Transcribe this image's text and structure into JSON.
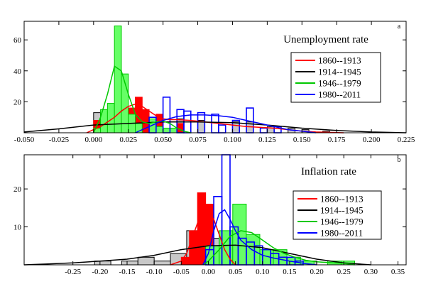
{
  "chart_data": [
    {
      "type": "histogram",
      "title": "Unemployment rate",
      "panel_tag": "a",
      "xlabel": "",
      "ylabel": "",
      "xlim": [
        -0.05,
        0.225
      ],
      "ylim": [
        0,
        72
      ],
      "x_ticks": [
        -0.05,
        -0.025,
        0.0,
        0.025,
        0.05,
        0.075,
        0.1,
        0.125,
        0.15,
        0.175,
        0.2,
        0.225
      ],
      "x_tick_labels": [
        "-0.050",
        "-0.025",
        "0.000",
        "0.025",
        "0.050",
        "0.075",
        "0.100",
        "0.125",
        "0.150",
        "0.175",
        "0.200",
        "0.225"
      ],
      "y_ticks": [
        20,
        40,
        60
      ],
      "y_tick_labels": [
        "20",
        "40",
        "60"
      ],
      "legend_position": "right",
      "grid": false,
      "series": [
        {
          "name": "1860--1913",
          "color": "#ff0000",
          "fill": "#ff0000",
          "hist": [
            [
              0.0,
              0.005,
              8
            ],
            [
              0.025,
              0.03,
              16
            ],
            [
              0.03,
              0.035,
              23
            ],
            [
              0.035,
              0.04,
              15
            ],
            [
              0.045,
              0.05,
              12
            ],
            [
              0.06,
              0.065,
              6
            ]
          ],
          "curve": [
            [
              -0.005,
              0
            ],
            [
              0.0,
              2
            ],
            [
              0.005,
              4
            ],
            [
              0.01,
              7
            ],
            [
              0.015,
              10
            ],
            [
              0.02,
              14
            ],
            [
              0.025,
              17
            ],
            [
              0.03,
              18.5
            ],
            [
              0.035,
              17
            ],
            [
              0.04,
              14
            ],
            [
              0.045,
              11
            ],
            [
              0.05,
              9
            ],
            [
              0.055,
              8.5
            ],
            [
              0.06,
              8.5
            ],
            [
              0.07,
              8
            ],
            [
              0.08,
              7
            ],
            [
              0.09,
              6
            ],
            [
              0.1,
              5
            ],
            [
              0.11,
              4
            ],
            [
              0.12,
              3.5
            ],
            [
              0.13,
              3
            ],
            [
              0.14,
              2
            ],
            [
              0.15,
              1
            ],
            [
              0.16,
              0.5
            ],
            [
              0.18,
              0
            ]
          ]
        },
        {
          "name": "1914--1945",
          "color": "#000000",
          "fill": "#c8c8c8",
          "hist": [
            [
              0.0,
              0.005,
              13
            ],
            [
              0.025,
              0.03,
              7
            ],
            [
              0.04,
              0.045,
              7
            ],
            [
              0.06,
              0.065,
              9
            ],
            [
              0.075,
              0.08,
              8
            ],
            [
              0.1,
              0.105,
              7
            ],
            [
              0.11,
              0.115,
              7
            ],
            [
              0.125,
              0.13,
              4
            ],
            [
              0.14,
              0.145,
              3
            ],
            [
              0.15,
              0.155,
              2
            ],
            [
              0.165,
              0.17,
              1
            ]
          ],
          "curve": [
            [
              -0.05,
              0.5
            ],
            [
              -0.025,
              2.5
            ],
            [
              0.0,
              5
            ],
            [
              0.025,
              6
            ],
            [
              0.05,
              7
            ],
            [
              0.075,
              7
            ],
            [
              0.1,
              6.5
            ],
            [
              0.125,
              5
            ],
            [
              0.15,
              3
            ],
            [
              0.175,
              1.5
            ],
            [
              0.2,
              0.5
            ],
            [
              0.225,
              0
            ]
          ]
        },
        {
          "name": "1946--1979",
          "color": "#00c800",
          "fill": "#66ff66",
          "hist": [
            [
              0.0,
              0.005,
              3
            ],
            [
              0.005,
              0.01,
              15
            ],
            [
              0.01,
              0.015,
              19
            ],
            [
              0.015,
              0.02,
              69
            ],
            [
              0.02,
              0.025,
              38
            ],
            [
              0.025,
              0.03,
              12
            ],
            [
              0.03,
              0.035,
              6
            ],
            [
              0.04,
              0.045,
              9
            ],
            [
              0.045,
              0.05,
              4
            ],
            [
              0.05,
              0.055,
              3
            ],
            [
              0.055,
              0.06,
              3
            ]
          ],
          "curve": [
            [
              0.0,
              0
            ],
            [
              0.005,
              10
            ],
            [
              0.01,
              25
            ],
            [
              0.015,
              43
            ],
            [
              0.02,
              40
            ],
            [
              0.025,
              25
            ],
            [
              0.03,
              12
            ],
            [
              0.035,
              7
            ],
            [
              0.04,
              6
            ],
            [
              0.045,
              7
            ],
            [
              0.05,
              7.5
            ],
            [
              0.055,
              6
            ],
            [
              0.06,
              3
            ],
            [
              0.065,
              1
            ],
            [
              0.07,
              0
            ]
          ]
        },
        {
          "name": "1980--2011",
          "color": "#0000ff",
          "fill": "none",
          "hist": [
            [
              0.04,
              0.045,
              10
            ],
            [
              0.05,
              0.055,
              23
            ],
            [
              0.06,
              0.065,
              15
            ],
            [
              0.065,
              0.07,
              14
            ],
            [
              0.075,
              0.08,
              13
            ],
            [
              0.085,
              0.09,
              12
            ],
            [
              0.09,
              0.095,
              5
            ],
            [
              0.1,
              0.105,
              8
            ],
            [
              0.11,
              0.115,
              16
            ],
            [
              0.12,
              0.125,
              3
            ],
            [
              0.13,
              0.135,
              4
            ]
          ],
          "curve": [
            [
              0.03,
              0
            ],
            [
              0.04,
              4
            ],
            [
              0.05,
              8
            ],
            [
              0.06,
              10.5
            ],
            [
              0.07,
              11.5
            ],
            [
              0.08,
              11.5
            ],
            [
              0.09,
              11
            ],
            [
              0.1,
              10
            ],
            [
              0.11,
              8
            ],
            [
              0.12,
              6
            ],
            [
              0.13,
              4
            ],
            [
              0.14,
              2
            ],
            [
              0.15,
              1
            ],
            [
              0.16,
              0
            ]
          ]
        }
      ]
    },
    {
      "type": "histogram",
      "title": "Inflation rate",
      "panel_tag": "b",
      "xlabel": "",
      "ylabel": "",
      "xlim": [
        -0.34,
        0.365
      ],
      "ylim": [
        0,
        29
      ],
      "x_ticks": [
        -0.25,
        -0.2,
        -0.15,
        -0.1,
        -0.05,
        0.0,
        0.05,
        0.1,
        0.15,
        0.2,
        0.25,
        0.3,
        0.35
      ],
      "x_tick_labels": [
        "-0.25",
        "-0.20",
        "-0.15",
        "-0.10",
        "-0.05",
        "0.00",
        "0.05",
        "0.10",
        "0.15",
        "0.20",
        "0.25",
        "0.30",
        "0.35"
      ],
      "y_ticks": [
        10,
        20
      ],
      "y_tick_labels": [
        "10",
        "20"
      ],
      "legend_position": "right",
      "grid": false,
      "series": [
        {
          "name": "1860--1913",
          "color": "#ff0000",
          "fill": "#ff0000",
          "hist": [
            [
              -0.05,
              -0.035,
              2
            ],
            [
              -0.035,
              -0.02,
              9
            ],
            [
              -0.02,
              -0.005,
              19
            ],
            [
              -0.005,
              0.01,
              16
            ],
            [
              0.01,
              0.025,
              5
            ]
          ],
          "curve": [
            [
              -0.07,
              0
            ],
            [
              -0.05,
              1
            ],
            [
              -0.04,
              3
            ],
            [
              -0.03,
              7
            ],
            [
              -0.02,
              11
            ],
            [
              -0.01,
              13.5
            ],
            [
              0.0,
              14
            ],
            [
              0.01,
              12
            ],
            [
              0.02,
              8
            ],
            [
              0.03,
              4
            ],
            [
              0.04,
              1.5
            ],
            [
              0.05,
              0
            ]
          ]
        },
        {
          "name": "1914--1945",
          "color": "#000000",
          "fill": "#c8c8c8",
          "hist": [
            [
              -0.21,
              -0.18,
              1
            ],
            [
              -0.16,
              -0.13,
              1
            ],
            [
              -0.13,
              -0.1,
              2
            ],
            [
              -0.1,
              -0.07,
              1
            ],
            [
              -0.07,
              -0.04,
              3
            ],
            [
              -0.04,
              -0.01,
              9
            ],
            [
              -0.01,
              0.02,
              7
            ],
            [
              0.02,
              0.05,
              4
            ],
            [
              0.05,
              0.08,
              2
            ],
            [
              0.08,
              0.11,
              2
            ],
            [
              0.11,
              0.14,
              3
            ],
            [
              0.14,
              0.17,
              2
            ],
            [
              0.17,
              0.2,
              1
            ]
          ],
          "curve": [
            [
              -0.34,
              0
            ],
            [
              -0.3,
              0.2
            ],
            [
              -0.25,
              0.5
            ],
            [
              -0.2,
              1
            ],
            [
              -0.15,
              1.5
            ],
            [
              -0.1,
              2.5
            ],
            [
              -0.05,
              4
            ],
            [
              0.0,
              5
            ],
            [
              0.05,
              5.2
            ],
            [
              0.1,
              4.5
            ],
            [
              0.15,
              3
            ],
            [
              0.2,
              1.5
            ],
            [
              0.25,
              0.5
            ],
            [
              0.3,
              0
            ]
          ]
        },
        {
          "name": "1946--1979",
          "color": "#00c800",
          "fill": "#66ff66",
          "hist": [
            [
              -0.005,
              0.02,
              5
            ],
            [
              0.02,
              0.045,
              9
            ],
            [
              0.045,
              0.07,
              16
            ],
            [
              0.07,
              0.095,
              8
            ],
            [
              0.095,
              0.12,
              4
            ],
            [
              0.12,
              0.145,
              4
            ],
            [
              0.145,
              0.17,
              2
            ],
            [
              0.17,
              0.195,
              1
            ],
            [
              0.22,
              0.245,
              1
            ],
            [
              0.245,
              0.27,
              1
            ]
          ],
          "curve": [
            [
              -0.01,
              0
            ],
            [
              0.0,
              1
            ],
            [
              0.02,
              4
            ],
            [
              0.04,
              7.5
            ],
            [
              0.06,
              9
            ],
            [
              0.08,
              8.5
            ],
            [
              0.1,
              6.5
            ],
            [
              0.12,
              4.5
            ],
            [
              0.14,
              3
            ],
            [
              0.16,
              2
            ],
            [
              0.18,
              1.2
            ],
            [
              0.2,
              0.8
            ],
            [
              0.22,
              0.6
            ],
            [
              0.25,
              0.4
            ],
            [
              0.27,
              0
            ]
          ]
        },
        {
          "name": "1980--2011",
          "color": "#0000ff",
          "fill": "none",
          "hist": [
            [
              -0.005,
              0.01,
              4
            ],
            [
              0.01,
              0.025,
              18
            ],
            [
              0.025,
              0.04,
              29
            ],
            [
              0.04,
              0.055,
              10
            ],
            [
              0.055,
              0.07,
              7
            ],
            [
              0.07,
              0.085,
              6
            ],
            [
              0.085,
              0.1,
              5
            ],
            [
              0.1,
              0.115,
              4
            ],
            [
              0.115,
              0.13,
              3
            ],
            [
              0.13,
              0.145,
              2
            ],
            [
              0.145,
              0.16,
              2
            ],
            [
              0.16,
              0.175,
              1
            ]
          ],
          "curve": [
            [
              -0.01,
              0
            ],
            [
              0.0,
              3
            ],
            [
              0.01,
              9
            ],
            [
              0.02,
              13.5
            ],
            [
              0.03,
              14.5
            ],
            [
              0.04,
              12
            ],
            [
              0.05,
              9
            ],
            [
              0.06,
              6.5
            ],
            [
              0.08,
              4
            ],
            [
              0.1,
              2.5
            ],
            [
              0.12,
              1.8
            ],
            [
              0.15,
              1
            ],
            [
              0.18,
              0.3
            ],
            [
              0.2,
              0
            ]
          ]
        }
      ]
    }
  ]
}
